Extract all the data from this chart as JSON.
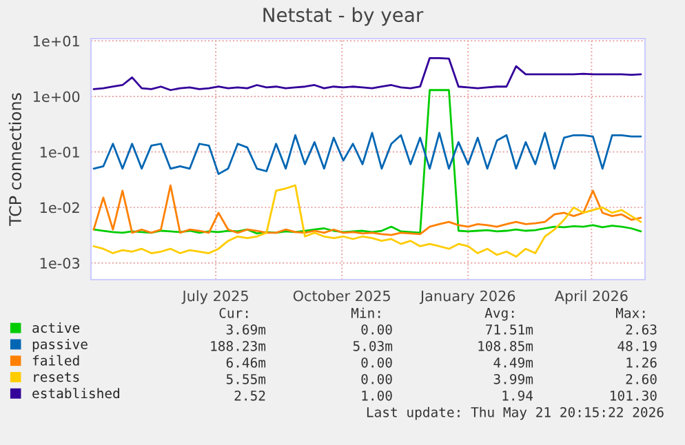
{
  "chart_data": {
    "type": "line",
    "title": "Netstat - by year",
    "ylabel": "TCP connections",
    "x": [
      "2025-04-03",
      "2025-04-10",
      "2025-04-17",
      "2025-04-24",
      "2025-05-01",
      "2025-05-08",
      "2025-05-15",
      "2025-05-22",
      "2025-05-29",
      "2025-06-05",
      "2025-06-12",
      "2025-06-19",
      "2025-06-26",
      "2025-07-03",
      "2025-07-10",
      "2025-07-17",
      "2025-07-24",
      "2025-07-31",
      "2025-08-07",
      "2025-08-14",
      "2025-08-21",
      "2025-08-28",
      "2025-09-04",
      "2025-09-11",
      "2025-09-18",
      "2025-09-25",
      "2025-10-02",
      "2025-10-09",
      "2025-10-16",
      "2025-10-23",
      "2025-10-30",
      "2025-11-06",
      "2025-11-13",
      "2025-11-20",
      "2025-11-27",
      "2025-12-04",
      "2025-12-11",
      "2025-12-18",
      "2025-12-25",
      "2026-01-01",
      "2026-01-08",
      "2026-01-15",
      "2026-01-22",
      "2026-01-29",
      "2026-02-05",
      "2026-02-12",
      "2026-02-19",
      "2026-02-26",
      "2026-03-05",
      "2026-03-12",
      "2026-03-19",
      "2026-03-26",
      "2026-04-02",
      "2026-04-09",
      "2026-04-16",
      "2026-04-23",
      "2026-04-30",
      "2026-05-07"
    ],
    "series": [
      {
        "name": "active",
        "color": "#00cc00",
        "values": [
          0.004,
          0.0038,
          0.0036,
          0.0035,
          0.0037,
          0.0036,
          0.0035,
          0.0038,
          0.0037,
          0.0036,
          0.0038,
          0.0035,
          0.0037,
          0.0036,
          0.0038,
          0.0037,
          0.004,
          0.0034,
          0.0036,
          0.0035,
          0.0037,
          0.0036,
          0.0038,
          0.004,
          0.0042,
          0.0038,
          0.0036,
          0.0037,
          0.0038,
          0.0036,
          0.0038,
          0.0045,
          0.0037,
          0.0036,
          0.0035,
          1.3,
          1.3,
          1.3,
          0.0038,
          0.0037,
          0.0038,
          0.0039,
          0.0037,
          0.0038,
          0.004,
          0.0038,
          0.0039,
          0.0042,
          0.0045,
          0.0044,
          0.0046,
          0.0045,
          0.0048,
          0.0044,
          0.0047,
          0.0045,
          0.0042,
          0.0037
        ]
      },
      {
        "name": "passive",
        "color": "#0066b3",
        "values": [
          0.05,
          0.055,
          0.14,
          0.05,
          0.14,
          0.05,
          0.13,
          0.14,
          0.05,
          0.055,
          0.05,
          0.14,
          0.13,
          0.04,
          0.05,
          0.14,
          0.12,
          0.05,
          0.045,
          0.14,
          0.05,
          0.2,
          0.06,
          0.15,
          0.05,
          0.18,
          0.07,
          0.14,
          0.06,
          0.22,
          0.05,
          0.14,
          0.2,
          0.06,
          0.18,
          0.05,
          0.22,
          0.05,
          0.15,
          0.06,
          0.18,
          0.05,
          0.16,
          0.2,
          0.05,
          0.15,
          0.06,
          0.22,
          0.05,
          0.18,
          0.2,
          0.2,
          0.19,
          0.05,
          0.2,
          0.2,
          0.19,
          0.19
        ]
      },
      {
        "name": "failed",
        "color": "#ff8000",
        "values": [
          0.004,
          0.015,
          0.004,
          0.02,
          0.0035,
          0.004,
          0.0035,
          0.004,
          0.025,
          0.0035,
          0.004,
          0.0038,
          0.0035,
          0.008,
          0.004,
          0.0035,
          0.004,
          0.0038,
          0.0035,
          0.0035,
          0.004,
          0.0036,
          0.0035,
          0.0038,
          0.0035,
          0.004,
          0.0035,
          0.0036,
          0.0034,
          0.0035,
          0.0033,
          0.0032,
          0.0035,
          0.0034,
          0.0033,
          0.0045,
          0.005,
          0.0055,
          0.0048,
          0.0045,
          0.005,
          0.0048,
          0.0045,
          0.005,
          0.0055,
          0.005,
          0.0052,
          0.0055,
          0.0075,
          0.008,
          0.007,
          0.008,
          0.02,
          0.008,
          0.007,
          0.0075,
          0.006,
          0.0065
        ]
      },
      {
        "name": "resets",
        "color": "#ffcc00",
        "values": [
          0.002,
          0.0018,
          0.0015,
          0.0017,
          0.0016,
          0.0018,
          0.0015,
          0.0016,
          0.0018,
          0.0015,
          0.0017,
          0.0016,
          0.0015,
          0.0018,
          0.0025,
          0.003,
          0.0028,
          0.003,
          0.0035,
          0.02,
          0.022,
          0.025,
          0.003,
          0.0035,
          0.003,
          0.0028,
          0.003,
          0.0027,
          0.003,
          0.0028,
          0.0025,
          0.0027,
          0.0022,
          0.0025,
          0.002,
          0.0022,
          0.002,
          0.0018,
          0.0022,
          0.002,
          0.0015,
          0.0018,
          0.0014,
          0.0016,
          0.0013,
          0.0018,
          0.0015,
          0.003,
          0.004,
          0.006,
          0.01,
          0.008,
          0.009,
          0.01,
          0.008,
          0.009,
          0.007,
          0.0055
        ]
      },
      {
        "name": "established",
        "color": "#330099",
        "values": [
          1.35,
          1.4,
          1.5,
          1.6,
          2.2,
          1.4,
          1.35,
          1.5,
          1.3,
          1.4,
          1.45,
          1.35,
          1.4,
          1.5,
          1.4,
          1.45,
          1.4,
          1.6,
          1.45,
          1.5,
          1.4,
          1.45,
          1.5,
          1.6,
          1.4,
          1.5,
          1.45,
          1.5,
          1.45,
          1.4,
          1.5,
          1.6,
          1.45,
          1.4,
          1.5,
          4.9,
          4.9,
          4.8,
          1.5,
          1.45,
          1.4,
          1.45,
          1.5,
          1.5,
          3.5,
          2.5,
          2.5,
          2.5,
          2.5,
          2.5,
          2.5,
          2.55,
          2.5,
          2.5,
          2.5,
          2.5,
          2.45,
          2.5
        ]
      }
    ],
    "log": "y",
    "ylim": [
      0.0005,
      11
    ],
    "yticks": [
      {
        "value": 0.001,
        "label": "1e-03"
      },
      {
        "value": 0.01,
        "label": "1e-02"
      },
      {
        "value": 0.1,
        "label": "1e-01"
      },
      {
        "value": 1,
        "label": "1e+00"
      },
      {
        "value": 10,
        "label": "1e+01"
      }
    ],
    "xlim": [
      "2025-04-01",
      "2026-05-10"
    ],
    "xticks": [
      {
        "value": "2025-07-01",
        "label": "July 2025"
      },
      {
        "value": "2025-10-01",
        "label": "October 2025"
      },
      {
        "value": "2026-01-01",
        "label": "January 2026"
      },
      {
        "value": "2026-04-01",
        "label": "April 2026"
      }
    ],
    "grid": true,
    "legend": "bottom left",
    "marker": "none",
    "line_style": "solid",
    "annotations": [
      "Cur:",
      "Min:",
      "Avg:",
      "Max:",
      "3.69m",
      "0.00",
      "71.51m",
      "2.63",
      "188.23m",
      "5.03m",
      "108.85m",
      "48.19",
      "6.46m",
      "0.00",
      "4.49m",
      "1.26",
      "5.55m",
      "0.00",
      "3.99m",
      "2.60",
      "2.52",
      "1.00",
      "1.94",
      "101.30",
      "Last update: Thu May 21 20:15:22 2026"
    ]
  }
}
